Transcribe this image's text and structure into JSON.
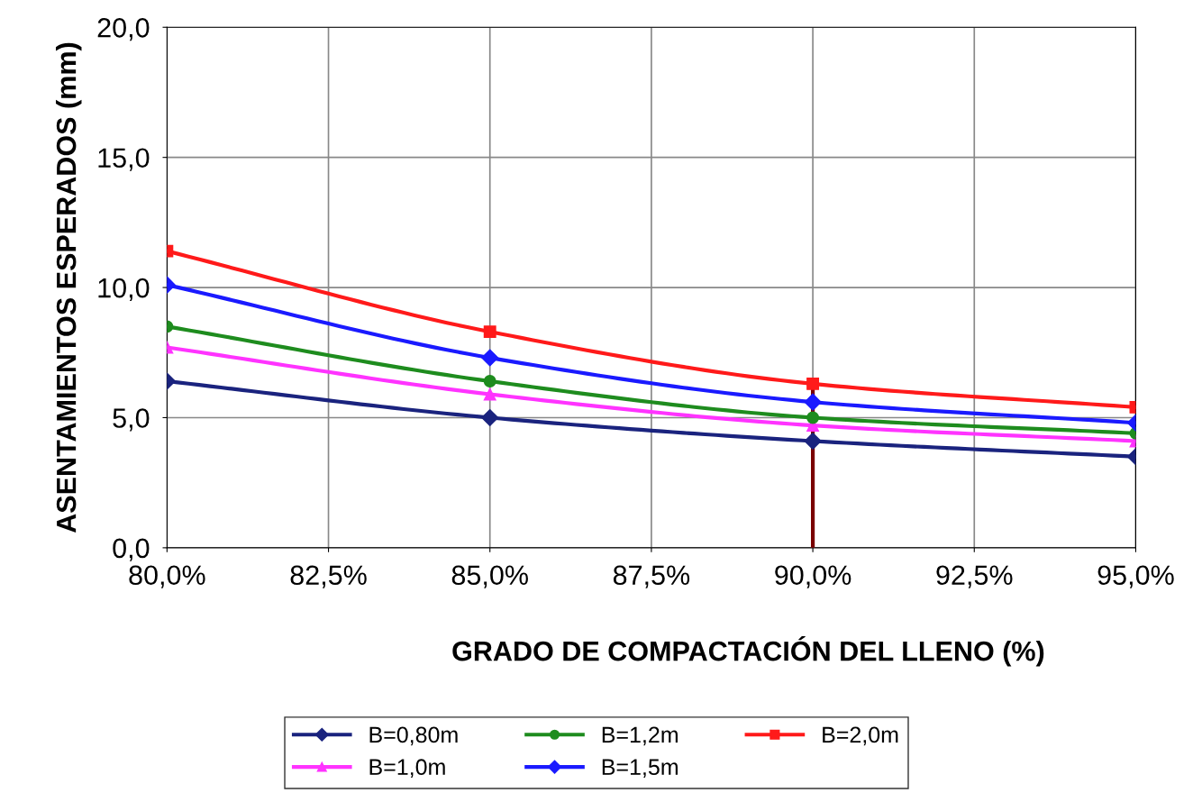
{
  "chart_data": {
    "type": "line",
    "xlabel": "GRADO DE COMPACTACIÓN DEL LLENO (%)",
    "ylabel": "ASENTAMIENTOS ESPERADOS (mm)",
    "x": [
      80,
      85,
      90,
      95
    ],
    "xlim": [
      80,
      95
    ],
    "xticks": [
      {
        "value": 80,
        "label": "80,0%"
      },
      {
        "value": 82.5,
        "label": "82,5%"
      },
      {
        "value": 85,
        "label": "85,0%"
      },
      {
        "value": 87.5,
        "label": "87,5%"
      },
      {
        "value": 90,
        "label": "90,0%"
      },
      {
        "value": 92.5,
        "label": "92,5%"
      },
      {
        "value": 95,
        "label": "95,0%"
      }
    ],
    "ylim": [
      0,
      20
    ],
    "yticks": [
      {
        "value": 0,
        "label": "0,0"
      },
      {
        "value": 5,
        "label": "5,0"
      },
      {
        "value": 10,
        "label": "10,0"
      },
      {
        "value": 15,
        "label": "15,0"
      },
      {
        "value": 20,
        "label": "20,0"
      }
    ],
    "grid": true,
    "legend": "bottom",
    "series": [
      {
        "name": "B=0,80m",
        "color": "#1a237e",
        "marker": "diamond",
        "values": [
          6.4,
          5.0,
          4.1,
          3.5
        ]
      },
      {
        "name": "B=1,0m",
        "color": "#ff33ff",
        "marker": "triangle",
        "values": [
          7.7,
          5.9,
          4.7,
          4.1
        ]
      },
      {
        "name": "B=1,2m",
        "color": "#1e8c1e",
        "marker": "circle",
        "values": [
          8.5,
          6.4,
          5.0,
          4.4
        ]
      },
      {
        "name": "B=1,5m",
        "color": "#1a1aff",
        "marker": "diamond",
        "values": [
          10.1,
          7.3,
          5.6,
          4.8
        ]
      },
      {
        "name": "B=2,0m",
        "color": "#ff1a1a",
        "marker": "square",
        "values": [
          11.4,
          8.3,
          6.3,
          5.4
        ]
      },
      {
        "color": "#7a0000",
        "marker": "none",
        "x": [
          90,
          90
        ],
        "values": [
          0,
          6.2
        ]
      }
    ]
  }
}
